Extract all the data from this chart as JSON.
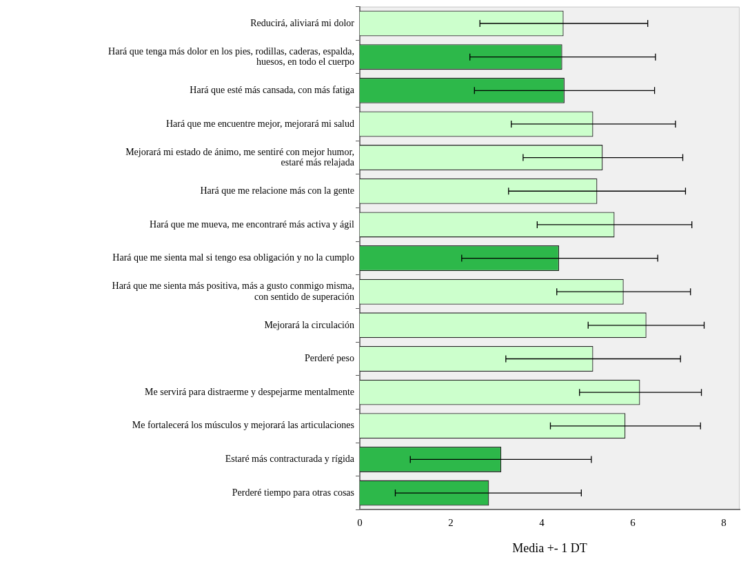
{
  "chart_data": {
    "type": "bar",
    "orientation": "horizontal",
    "xlabel": "Media +- 1 DT",
    "categories": [
      "Reducirá, aliviará mi dolor",
      "Hará que tenga más dolor en los pies, rodillas, caderas, espalda,\nhuesos, en todo el cuerpo",
      "Hará que esté más cansada, con más fatiga",
      "Hará que me encuentre mejor, mejorará mi salud",
      "Mejorará mi estado de ánimo, me sentiré con mejor humor,\nestaré más relajada",
      "Hará que me relacione más con la gente",
      "Hará que me mueva, me encontraré más activa y ágil",
      "Hará que me sienta mal si tengo esa obligación y no la cumplo",
      "Hará que me sienta más positiva, más a gusto conmigo misma,\ncon sentido de superación",
      "Mejorará la circulación",
      "Perderé peso",
      "Me servirá para distraerme y despejarme mentalmente",
      "Me fortalecerá los músculos y mejorará las articulaciones",
      "Estaré más contracturada y rígida",
      "Perderé tiempo para otras cosas"
    ],
    "values": [
      4.48,
      4.45,
      4.5,
      5.13,
      5.34,
      5.22,
      5.6,
      4.38,
      5.8,
      6.3,
      5.13,
      6.16,
      5.84,
      3.11,
      2.84
    ],
    "errors": [
      [
        2.64,
        6.33
      ],
      [
        2.42,
        6.5
      ],
      [
        2.52,
        6.48
      ],
      [
        3.33,
        6.94
      ],
      [
        3.59,
        7.1
      ],
      [
        3.27,
        7.16
      ],
      [
        3.9,
        7.3
      ],
      [
        2.24,
        6.55
      ],
      [
        4.33,
        7.27
      ],
      [
        5.02,
        7.57
      ],
      [
        3.21,
        7.05
      ],
      [
        4.83,
        7.51
      ],
      [
        4.19,
        7.49
      ],
      [
        1.11,
        5.09
      ],
      [
        0.78,
        4.87
      ]
    ],
    "colors": [
      "#ccffcc",
      "#2db84a",
      "#2db84a",
      "#ccffcc",
      "#ccffcc",
      "#ccffcc",
      "#ccffcc",
      "#2db84a",
      "#ccffcc",
      "#ccffcc",
      "#ccffcc",
      "#ccffcc",
      "#ccffcc",
      "#2db84a",
      "#2db84a"
    ],
    "xlim": [
      0,
      8.35
    ],
    "xticks": [
      0,
      2,
      4,
      6,
      8
    ],
    "grid": false,
    "legend": false
  }
}
